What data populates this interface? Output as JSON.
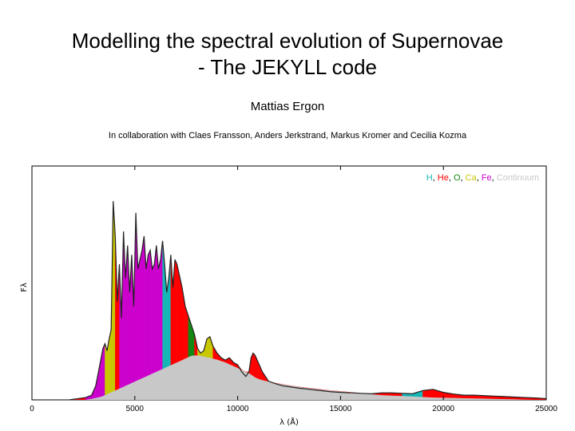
{
  "slide": {
    "title_line1": "Modelling the spectral evolution of Supernovae",
    "title_line2": "- The JEKYLL code",
    "author": "Mattias Ergon",
    "collaboration": "In collaboration with Claes Fransson, Anders Jerkstrand, Markus Kromer and Cecilia Kozma"
  },
  "chart_data": {
    "type": "area",
    "xlabel": "λ (Å)",
    "ylabel": "Fλ",
    "xlim": [
      0,
      25000
    ],
    "ylim": [
      0,
      1
    ],
    "xticks": [
      0,
      5000,
      10000,
      15000,
      20000,
      25000
    ],
    "xtick_labels": [
      "0",
      "5000",
      "10000",
      "15000",
      "20000",
      "25000"
    ],
    "grid": false,
    "legend_placement": "top-right",
    "legend": [
      {
        "label": "H",
        "color": "#17b5b5"
      },
      {
        "label": "He",
        "color": "#ff0000"
      },
      {
        "label": "O",
        "color": "#118811"
      },
      {
        "label": "Ca",
        "color": "#c8c800"
      },
      {
        "label": "Fe",
        "color": "#cc00cc"
      },
      {
        "label": "Continuum",
        "color": "#c8c8c8"
      }
    ],
    "x": [
      1800,
      2200,
      2600,
      2900,
      3100,
      3300,
      3450,
      3550,
      3650,
      3750,
      3850,
      3950,
      4050,
      4150,
      4250,
      4350,
      4450,
      4550,
      4650,
      4750,
      4850,
      4950,
      5050,
      5150,
      5250,
      5350,
      5450,
      5550,
      5650,
      5750,
      5850,
      5950,
      6050,
      6150,
      6250,
      6350,
      6450,
      6550,
      6650,
      6750,
      6850,
      6950,
      7050,
      7150,
      7300,
      7450,
      7600,
      7750,
      7900,
      8050,
      8200,
      8350,
      8500,
      8650,
      8800,
      9000,
      9200,
      9400,
      9600,
      9800,
      10000,
      10200,
      10400,
      10550,
      10650,
      10750,
      10850,
      11000,
      11200,
      11500,
      11800,
      12200,
      12600,
      13000,
      13500,
      14000,
      14500,
      15000,
      15500,
      16000,
      16500,
      17000,
      17500,
      18000,
      18500,
      19000,
      19500,
      20000,
      20500,
      21000,
      21500,
      22000,
      22500,
      23000,
      23500,
      24000,
      24500,
      25000
    ],
    "series": [
      {
        "name": "Continuum",
        "values": [
          0.0,
          0.0,
          0.0,
          0.004,
          0.008,
          0.012,
          0.016,
          0.02,
          0.024,
          0.028,
          0.032,
          0.036,
          0.04,
          0.044,
          0.048,
          0.052,
          0.056,
          0.06,
          0.064,
          0.068,
          0.072,
          0.076,
          0.08,
          0.084,
          0.088,
          0.092,
          0.096,
          0.1,
          0.104,
          0.108,
          0.112,
          0.116,
          0.12,
          0.124,
          0.128,
          0.132,
          0.136,
          0.14,
          0.144,
          0.148,
          0.152,
          0.156,
          0.16,
          0.164,
          0.17,
          0.176,
          0.182,
          0.188,
          0.19,
          0.19,
          0.188,
          0.185,
          0.182,
          0.18,
          0.176,
          0.172,
          0.166,
          0.16,
          0.152,
          0.144,
          0.136,
          0.128,
          0.12,
          0.114,
          0.108,
          0.102,
          0.096,
          0.09,
          0.084,
          0.078,
          0.072,
          0.066,
          0.06,
          0.055,
          0.05,
          0.045,
          0.04,
          0.036,
          0.032,
          0.028,
          0.024,
          0.02,
          0.018,
          0.016,
          0.014,
          0.012,
          0.01,
          0.009,
          0.008,
          0.007,
          0.006,
          0.005,
          0.004,
          0.003,
          0.002,
          0.001,
          0.0,
          0.0
        ]
      },
      {
        "name": "total",
        "values": [
          0.0,
          0.005,
          0.01,
          0.02,
          0.06,
          0.15,
          0.22,
          0.24,
          0.21,
          0.26,
          0.3,
          0.85,
          0.7,
          0.42,
          0.58,
          0.35,
          0.72,
          0.52,
          0.66,
          0.46,
          0.62,
          0.4,
          0.8,
          0.56,
          0.6,
          0.64,
          0.7,
          0.56,
          0.62,
          0.64,
          0.56,
          0.58,
          0.66,
          0.56,
          0.6,
          0.68,
          0.58,
          0.46,
          0.52,
          0.62,
          0.48,
          0.6,
          0.58,
          0.54,
          0.48,
          0.4,
          0.36,
          0.32,
          0.28,
          0.22,
          0.2,
          0.21,
          0.26,
          0.27,
          0.23,
          0.2,
          0.18,
          0.17,
          0.18,
          0.16,
          0.15,
          0.12,
          0.1,
          0.12,
          0.18,
          0.2,
          0.19,
          0.16,
          0.12,
          0.08,
          0.07,
          0.06,
          0.055,
          0.05,
          0.045,
          0.04,
          0.035,
          0.032,
          0.03,
          0.028,
          0.026,
          0.03,
          0.03,
          0.028,
          0.026,
          0.04,
          0.045,
          0.032,
          0.025,
          0.02,
          0.02,
          0.018,
          0.016,
          0.014,
          0.012,
          0.01,
          0.008,
          0.005
        ]
      }
    ]
  }
}
